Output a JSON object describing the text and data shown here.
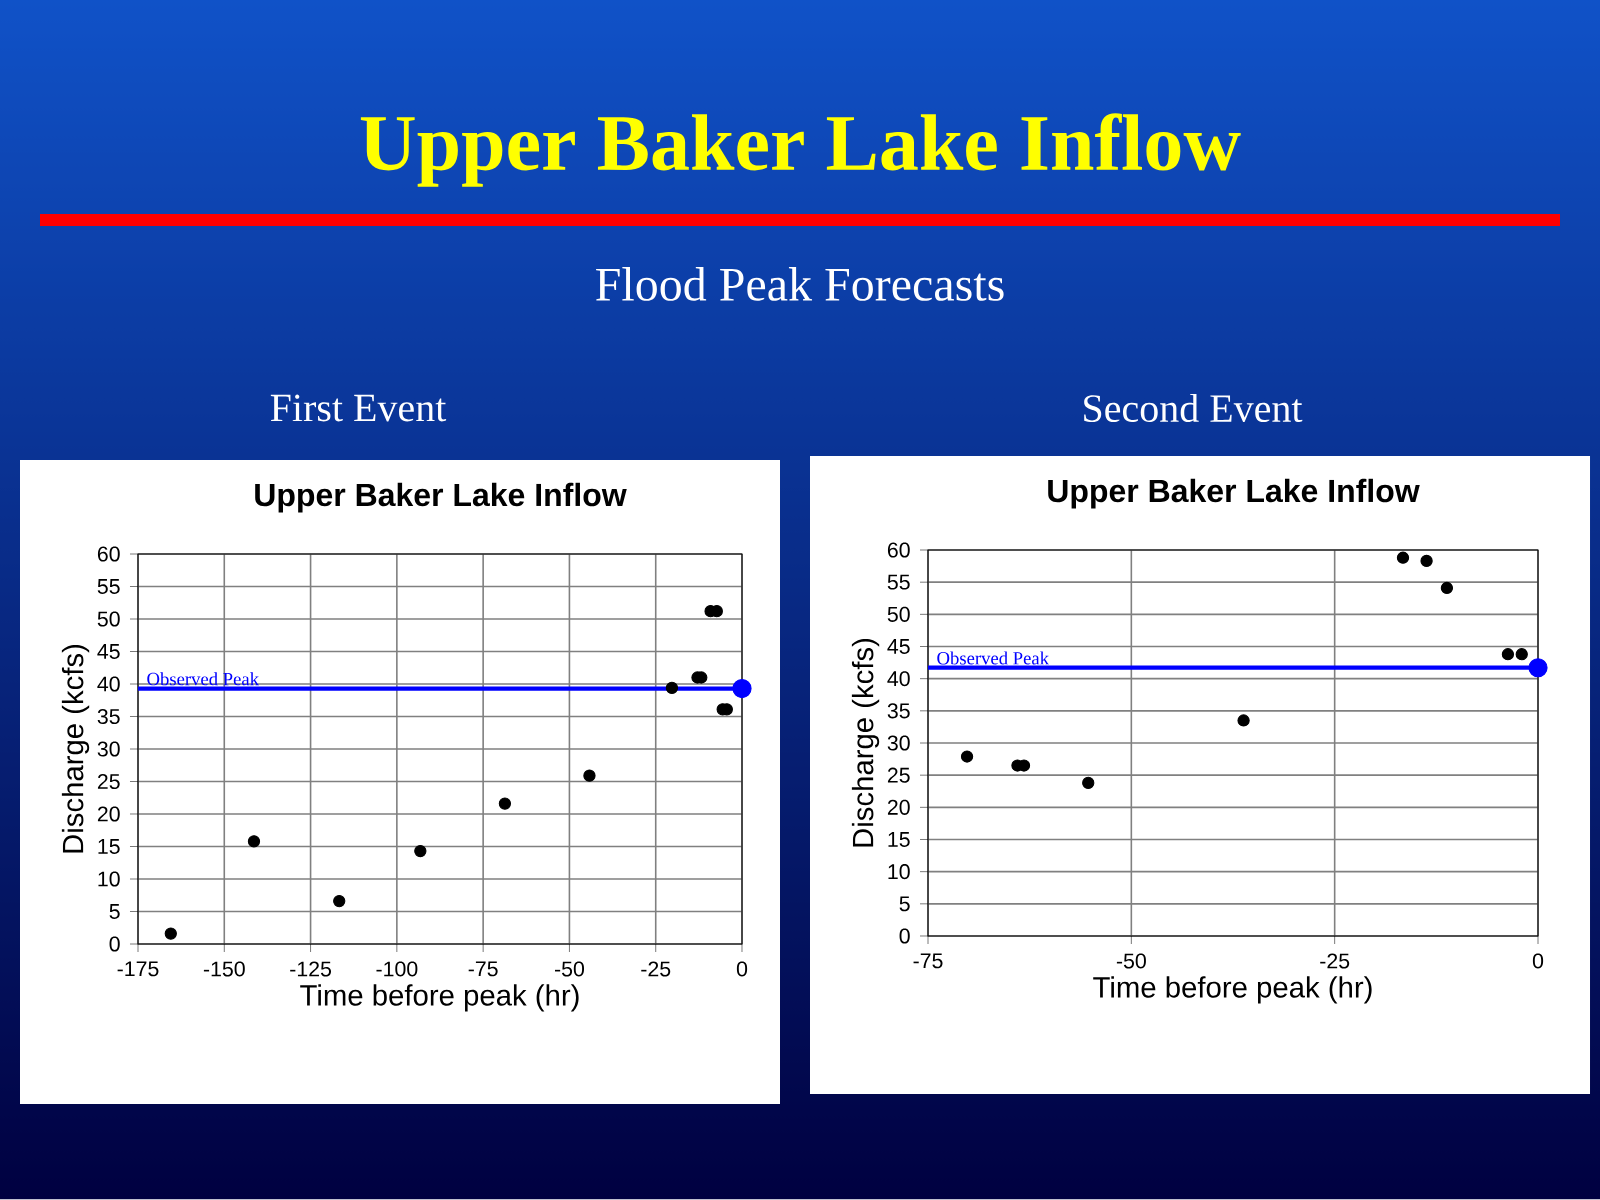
{
  "chart_data": [
    {
      "type": "scatter",
      "title": "Upper Baker Lake Inflow",
      "subtitle": "First Event",
      "xlabel": "Time before peak (hr)",
      "ylabel": "Discharge (kcfs)",
      "annotations": [
        "Upper Baker Lake Inflow",
        "Flood Peak Forecasts"
      ],
      "xlim": [
        -175,
        0
      ],
      "ylim": [
        0,
        60
      ],
      "xticks": [
        -175,
        -150,
        -125,
        -100,
        -75,
        -50,
        -25,
        0
      ],
      "yticks": [
        0,
        5,
        10,
        15,
        20,
        25,
        30,
        35,
        40,
        45,
        50,
        55,
        60
      ],
      "grid": true,
      "ref_lines": [
        {
          "axis": "y",
          "value": 39.3,
          "label": "Observed Peak",
          "color": "#0000ff"
        }
      ],
      "series": [
        {
          "color": "#000000",
          "x": [
            -165.5,
            -141.4,
            -116.7,
            -93.2,
            -68.7,
            -44.2,
            -20.3,
            -12.9,
            -11.8,
            -9.1,
            -7.3,
            -5.6,
            -4.4
          ],
          "values": [
            1.6,
            15.8,
            6.6,
            14.3,
            21.6,
            25.9,
            39.4,
            41.0,
            41.0,
            51.2,
            51.2,
            36.1,
            36.1
          ]
        },
        {
          "color": "#0000ff",
          "x": [
            0
          ],
          "values": [
            39.3
          ]
        }
      ]
    },
    {
      "type": "scatter",
      "title": "Upper Baker Lake Inflow",
      "subtitle": "Second Event",
      "xlabel": "Time before peak (hr)",
      "ylabel": "Discharge (kcfs)",
      "xlim": [
        -75,
        0
      ],
      "ylim": [
        0,
        60
      ],
      "xticks": [
        -75,
        -50,
        -25,
        0
      ],
      "yticks": [
        0,
        5,
        10,
        15,
        20,
        25,
        30,
        35,
        40,
        45,
        50,
        55,
        60
      ],
      "grid": true,
      "ref_lines": [
        {
          "axis": "y",
          "value": 41.7,
          "label": "Observed Peak",
          "color": "#0000ff"
        }
      ],
      "series": [
        {
          "color": "#000000",
          "x": [
            -70.2,
            -64.0,
            -63.2,
            -55.3,
            -36.2,
            -16.6,
            -13.7,
            -11.2,
            -3.7,
            -2.0
          ],
          "values": [
            27.9,
            26.5,
            26.5,
            23.8,
            33.5,
            58.8,
            58.3,
            54.1,
            43.8,
            43.8
          ]
        },
        {
          "color": "#0000ff",
          "x": [
            0
          ],
          "values": [
            41.7
          ]
        }
      ]
    }
  ]
}
